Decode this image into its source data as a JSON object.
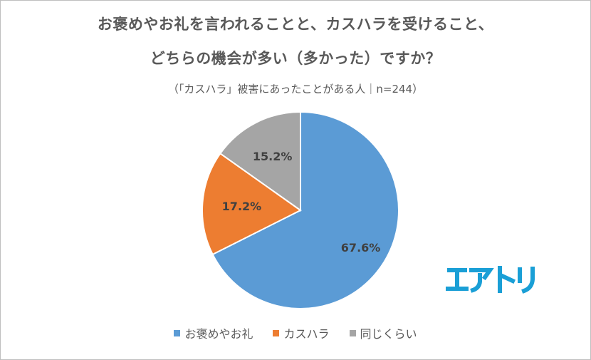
{
  "chart_data": {
    "type": "pie",
    "title": "お褒めやお礼を言われることと、カスハラを受けること、",
    "title_line2": "どちらの機会が多い（多かった）ですか？",
    "subtitle": "（「カスハラ」被害にあったことがある人｜n=244）",
    "categories": [
      "お褒めやお礼",
      "カスハラ",
      "同じくらい"
    ],
    "values": [
      67.6,
      17.2,
      15.2
    ],
    "data_labels": [
      "67.6%",
      "17.2%",
      "15.2%"
    ],
    "colors": [
      "#5b9bd5",
      "#ed7d31",
      "#a5a5a5"
    ],
    "legend_position": "bottom"
  },
  "logo": {
    "text": "エアトリ",
    "color": "#1a9fd6"
  }
}
